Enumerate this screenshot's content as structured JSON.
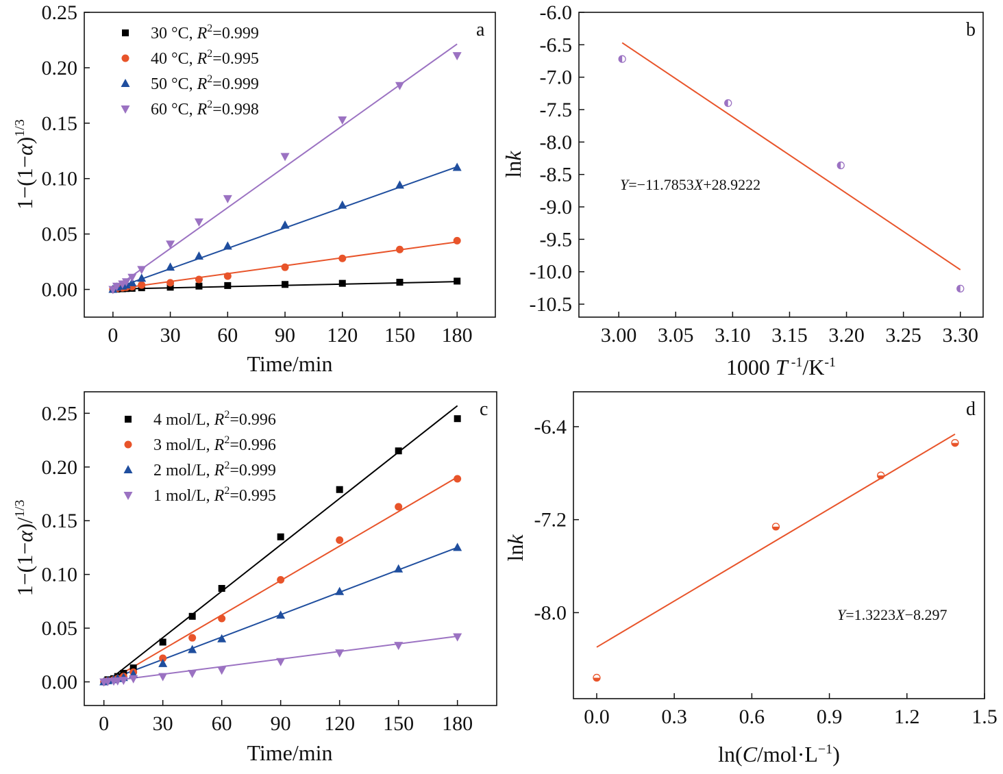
{
  "figure": {
    "panels": [
      {
        "id": "a",
        "letter": "a"
      },
      {
        "id": "b",
        "letter": "b"
      },
      {
        "id": "c",
        "letter": "c"
      },
      {
        "id": "d",
        "letter": "d"
      }
    ]
  },
  "chart_data": [
    {
      "id": "a",
      "type": "scatter",
      "letter": "a",
      "xlabel": "Time/min",
      "ylabel": "1−(1−α)^(1/3)",
      "xlim": [
        -15,
        200
      ],
      "ylim": [
        -0.025,
        0.25
      ],
      "xticks": [
        0,
        30,
        60,
        90,
        120,
        150,
        180
      ],
      "yticks": [
        0.0,
        0.05,
        0.1,
        0.15,
        0.2,
        0.25
      ],
      "ytick_labels": [
        "0.00",
        "0.05",
        "0.10",
        "0.15",
        "0.20",
        "0.25"
      ],
      "legend_position": "top-left",
      "series": [
        {
          "name": "30 °C, R²=0.999",
          "label_main": "30 °C, ",
          "r2": "0.999",
          "color": "#000000",
          "marker": "square",
          "x": [
            0,
            2,
            5,
            7,
            10,
            15,
            30,
            45,
            60,
            90,
            120,
            150,
            180
          ],
          "y": [
            0.0,
            0.0003,
            0.0006,
            0.0008,
            0.001,
            0.0015,
            0.002,
            0.003,
            0.0035,
            0.0045,
            0.0055,
            0.0065,
            0.0075
          ],
          "fit": {
            "slope": 3.75e-05,
            "intercept": 0.0003
          }
        },
        {
          "name": "40 °C, R²=0.995",
          "label_main": "40 °C, ",
          "r2": "0.995",
          "color": "#E8542A",
          "marker": "circle",
          "x": [
            0,
            2,
            5,
            7,
            10,
            15,
            30,
            45,
            60,
            90,
            120,
            150,
            180
          ],
          "y": [
            0.0,
            0.0008,
            0.0015,
            0.002,
            0.0025,
            0.004,
            0.006,
            0.009,
            0.012,
            0.02,
            0.028,
            0.036,
            0.044
          ],
          "fit": {
            "slope": 0.000238,
            "intercept": 0.0
          },
          "fit_range": [
            0,
            180
          ]
        },
        {
          "name": "50 °C, R²=0.999",
          "label_main": "50 °C, ",
          "r2": "0.999",
          "color": "#1F4E9E",
          "marker": "triangle-up",
          "x": [
            0,
            2,
            5,
            7,
            10,
            15,
            30,
            45,
            60,
            90,
            120,
            150,
            180
          ],
          "y": [
            0.0,
            0.002,
            0.003,
            0.004,
            0.006,
            0.01,
            0.02,
            0.03,
            0.039,
            0.058,
            0.076,
            0.094,
            0.11
          ],
          "fit": {
            "slope": 0.000613,
            "intercept": 0.0003
          }
        },
        {
          "name": "60 °C, R²=0.998",
          "label_main": "60 °C, ",
          "r2": "0.998",
          "color": "#9B72C2",
          "marker": "triangle-down",
          "x": [
            0,
            2,
            5,
            7,
            10,
            15,
            30,
            45,
            60,
            90,
            120,
            150,
            180
          ],
          "y": [
            0.0,
            0.003,
            0.005,
            0.007,
            0.011,
            0.018,
            0.041,
            0.061,
            0.082,
            0.12,
            0.153,
            0.184,
            0.211
          ],
          "fit": {
            "slope": 0.00123,
            "intercept": 0.0
          }
        }
      ]
    },
    {
      "id": "b",
      "type": "scatter",
      "letter": "b",
      "xlabel_main": "1000 ",
      "xlabel_T": "T",
      "xlabel_sup1": " -1",
      "xlabel_mid": "/K",
      "xlabel_sup2": "-1",
      "ylabel_main": "ln",
      "ylabel_k": "k",
      "xlim": [
        2.965,
        3.32
      ],
      "ylim": [
        -10.7,
        -6.0
      ],
      "xticks": [
        3.0,
        3.05,
        3.1,
        3.15,
        3.2,
        3.25,
        3.3
      ],
      "xtick_labels": [
        "3.00",
        "3.05",
        "3.10",
        "3.15",
        "3.20",
        "3.25",
        "3.30"
      ],
      "yticks": [
        -6.0,
        -6.5,
        -7.0,
        -7.5,
        -8.0,
        -8.5,
        -9.0,
        -9.5,
        -10.0,
        -10.5
      ],
      "ytick_labels": [
        "-6.0",
        "-6.5",
        "-7.0",
        "-7.5",
        "-8.0",
        "-8.5",
        "-9.0",
        "-9.5",
        "-10.0",
        "-10.5"
      ],
      "series": [
        {
          "color": "#9B72C2",
          "marker": "half-circle",
          "fill_side": "left",
          "x": [
            3.003,
            3.096,
            3.195,
            3.3
          ],
          "y": [
            -6.72,
            -7.4,
            -8.36,
            -10.26
          ]
        }
      ],
      "fit": {
        "slope": -11.7853,
        "intercept": 28.9222,
        "x_range": [
          3.003,
          3.3
        ],
        "color": "#E8542A"
      },
      "equation": {
        "y_var": "Y",
        "x_var": "X",
        "text1": "=−11.7853",
        "text2": "+28.9222"
      }
    },
    {
      "id": "c",
      "type": "scatter",
      "letter": "c",
      "xlabel": "Time/min",
      "ylabel": "1−(1−α)^(1/3)",
      "xlim": [
        -10,
        200
      ],
      "ylim": [
        -0.022,
        0.27
      ],
      "xticks": [
        0,
        30,
        60,
        90,
        120,
        150,
        180
      ],
      "yticks": [
        0.0,
        0.05,
        0.1,
        0.15,
        0.2,
        0.25
      ],
      "ytick_labels": [
        "0.00",
        "0.05",
        "0.10",
        "0.15",
        "0.20",
        "0.25"
      ],
      "legend_position": "top-left",
      "series": [
        {
          "name": "4 mol/L, R²=0.996",
          "label_main": "4 mol/L, ",
          "r2": "0.996",
          "color": "#000000",
          "marker": "square",
          "x": [
            0,
            2,
            5,
            7,
            10,
            15,
            30,
            45,
            60,
            90,
            120,
            150,
            180
          ],
          "y": [
            0.0,
            0.002,
            0.003,
            0.005,
            0.008,
            0.013,
            0.037,
            0.061,
            0.087,
            0.135,
            0.179,
            0.215,
            0.245
          ],
          "fit": {
            "slope": 0.001439,
            "intercept": -0.002
          }
        },
        {
          "name": "3 mol/L, R²=0.996",
          "label_main": "3 mol/L, ",
          "r2": "0.996",
          "color": "#E8542A",
          "marker": "circle",
          "x": [
            0,
            2,
            5,
            7,
            10,
            15,
            30,
            45,
            60,
            90,
            120,
            150,
            180
          ],
          "y": [
            0.0,
            0.001,
            0.002,
            0.003,
            0.005,
            0.009,
            0.022,
            0.041,
            0.059,
            0.095,
            0.132,
            0.163,
            0.189
          ],
          "fit": {
            "slope": 0.00107,
            "intercept": -0.002
          }
        },
        {
          "name": "2 mol/L, R²=0.999",
          "label_main": "2 mol/L, ",
          "r2": "0.999",
          "color": "#1F4E9E",
          "marker": "triangle-up",
          "x": [
            0,
            2,
            5,
            7,
            10,
            15,
            30,
            45,
            60,
            90,
            120,
            150,
            180
          ],
          "y": [
            0.0,
            0.001,
            0.002,
            0.003,
            0.004,
            0.007,
            0.017,
            0.03,
            0.04,
            0.062,
            0.084,
            0.105,
            0.125
          ],
          "fit": {
            "slope": 0.000695,
            "intercept": 0.0
          }
        },
        {
          "name": "1 mol/L, R²=0.995",
          "label_main": "1 mol/L, ",
          "r2": "0.995",
          "color": "#9B72C2",
          "marker": "triangle-down",
          "x": [
            0,
            2,
            5,
            7,
            10,
            15,
            30,
            45,
            60,
            90,
            120,
            150,
            180
          ],
          "y": [
            0.0,
            0.0005,
            0.0008,
            0.001,
            0.0015,
            0.003,
            0.005,
            0.008,
            0.011,
            0.019,
            0.027,
            0.034,
            0.042
          ],
          "fit": {
            "slope": 0.000236,
            "intercept": 0.0
          }
        }
      ]
    },
    {
      "id": "d",
      "type": "scatter",
      "letter": "d",
      "xlabel_pre": "ln(",
      "xlabel_C": "C",
      "xlabel_post": "/mol·L",
      "xlabel_sup": "−1",
      "xlabel_end": ")",
      "ylabel_main": "ln",
      "ylabel_k": "k",
      "xlim": [
        -0.09,
        1.5
      ],
      "ylim": [
        -8.74,
        -6.1
      ],
      "xticks": [
        0.0,
        0.3,
        0.6,
        0.9,
        1.2,
        1.5
      ],
      "xtick_labels": [
        "0.0",
        "0.3",
        "0.6",
        "0.9",
        "1.2",
        "1.5"
      ],
      "yticks": [
        -6.4,
        -7.2,
        -8.0
      ],
      "ytick_labels": [
        "-6.4",
        "-7.2",
        "-8.0"
      ],
      "series": [
        {
          "color": "#E8542A",
          "marker": "half-circle",
          "fill_side": "bottom",
          "x": [
            0.0,
            0.693,
            1.099,
            1.386
          ],
          "y": [
            -8.56,
            -7.26,
            -6.82,
            -6.54
          ]
        }
      ],
      "fit": {
        "slope": 1.3223,
        "intercept": -8.297,
        "x_range": [
          0.0,
          1.386
        ],
        "color": "#E8542A"
      },
      "equation": {
        "y_var": "Y",
        "x_var": "X",
        "text1": "=1.3223",
        "text2": "−8.297"
      }
    }
  ]
}
